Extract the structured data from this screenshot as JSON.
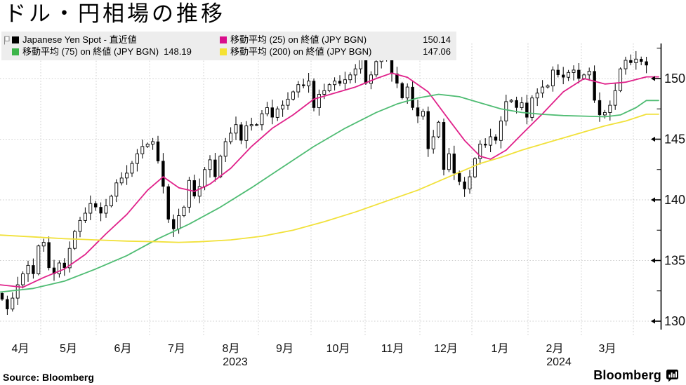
{
  "title": "ドル・円相場の推移",
  "source": "Source:  Bloomberg",
  "branding": {
    "wordmark": "Bloomberg"
  },
  "legend": {
    "series": [
      {
        "label": "Japanese Yen Spot - 直近値",
        "swatch": "#000000",
        "value": ""
      },
      {
        "label": "移動平均 (25)  on 終値 (JPY BGN)",
        "swatch": "#d90e8c",
        "value": "150.14"
      },
      {
        "label": "移動平均 (75)  on 終値 (JPY BGN)",
        "swatch": "#3db54a",
        "value": "148.19"
      },
      {
        "label": "移動平均 (200)  on 終値 (JPY BGN)",
        "swatch": "#f5e233",
        "value": "147.06"
      }
    ]
  },
  "chart_data": {
    "type": "candlestick",
    "instrument": "Japanese Yen Spot (JPY BGN)",
    "x_axis": {
      "months": [
        "4月",
        "5月",
        "6月",
        "7月",
        "8月",
        "9月",
        "10月",
        "11月",
        "12月",
        "1月",
        "2月",
        "3月"
      ],
      "years": [
        {
          "label": "2023",
          "under_month": "8月"
        },
        {
          "label": "2024",
          "under_month": "2月"
        }
      ]
    },
    "y_axis": {
      "ticks": [
        150,
        145,
        140,
        135,
        130
      ],
      "minor_step": 2.5,
      "range_shown": [
        129.3,
        153.0
      ],
      "grid": true
    },
    "candles": {
      "open_first": 132.3,
      "closes": [
        131.8,
        131.0,
        131.9,
        133.0,
        133.9,
        134.6,
        133.9,
        136.2,
        136.5,
        134.4,
        133.9,
        134.8,
        134.4,
        136.0,
        137.4,
        138.3,
        138.9,
        139.7,
        139.4,
        138.9,
        139.5,
        140.3,
        141.4,
        141.8,
        142.2,
        143.0,
        143.8,
        144.4,
        144.6,
        144.8,
        143.2,
        141.1,
        138.4,
        137.6,
        138.7,
        139.4,
        141.6,
        140.3,
        141.1,
        142.5,
        143.3,
        141.9,
        143.6,
        144.8,
        145.5,
        146.2,
        144.9,
        146.1,
        146.2,
        146.2,
        147.1,
        147.6,
        146.8,
        147.5,
        147.8,
        148.3,
        148.9,
        149.5,
        149.4,
        149.8,
        147.6,
        148.7,
        149.0,
        149.5,
        149.8,
        149.6,
        149.9,
        150.3,
        150.8,
        151.6,
        149.6,
        150.3,
        151.4,
        151.7,
        151.8,
        150.4,
        149.6,
        148.4,
        149.3,
        147.6,
        146.9,
        147.3,
        144.2,
        145.2,
        146.4,
        142.5,
        143.8,
        142.2,
        141.5,
        140.9,
        141.9,
        143.4,
        144.6,
        144.5,
        145.2,
        144.9,
        146.5,
        148.1,
        148.2,
        147.6,
        148.0,
        146.8,
        148.4,
        148.8,
        149.3,
        149.4,
        150.7,
        150.3,
        150.1,
        150.5,
        150.7,
        150.0,
        150.3,
        150.6,
        148.2,
        147.0,
        147.2,
        147.8,
        149.0,
        150.8,
        151.5,
        151.3,
        151.6,
        151.4,
        151.1
      ]
    },
    "moving_averages": [
      {
        "name": "移動平均 (25)",
        "color": "#e0218a",
        "last_value": 150.14,
        "points": [
          [
            0,
            133.0
          ],
          [
            4,
            132.8
          ],
          [
            8,
            133.6
          ],
          [
            12,
            134.3
          ],
          [
            16,
            135.5
          ],
          [
            20,
            137.2
          ],
          [
            24,
            138.8
          ],
          [
            28,
            140.8
          ],
          [
            31,
            141.9
          ],
          [
            34,
            141.0
          ],
          [
            37,
            140.7
          ],
          [
            40,
            141.3
          ],
          [
            44,
            142.6
          ],
          [
            48,
            144.4
          ],
          [
            52,
            145.9
          ],
          [
            56,
            147.0
          ],
          [
            60,
            148.3
          ],
          [
            64,
            148.8
          ],
          [
            68,
            149.3
          ],
          [
            72,
            150.0
          ],
          [
            75,
            150.45
          ],
          [
            78,
            150.1
          ],
          [
            82,
            148.9
          ],
          [
            86,
            146.6
          ],
          [
            89,
            144.9
          ],
          [
            92,
            143.6
          ],
          [
            94,
            143.35
          ],
          [
            97,
            144.1
          ],
          [
            100,
            145.4
          ],
          [
            104,
            147.1
          ],
          [
            108,
            148.9
          ],
          [
            112,
            150.0
          ],
          [
            116,
            149.55
          ],
          [
            120,
            149.7
          ],
          [
            124,
            150.14
          ]
        ]
      },
      {
        "name": "移動平均 (75)",
        "color": "#4fbc73",
        "last_value": 148.19,
        "points": [
          [
            0,
            132.4
          ],
          [
            6,
            132.7
          ],
          [
            12,
            133.3
          ],
          [
            18,
            134.3
          ],
          [
            24,
            135.4
          ],
          [
            30,
            136.8
          ],
          [
            36,
            138.0
          ],
          [
            42,
            139.4
          ],
          [
            48,
            141.0
          ],
          [
            54,
            142.7
          ],
          [
            60,
            144.4
          ],
          [
            66,
            145.9
          ],
          [
            72,
            147.2
          ],
          [
            76,
            147.9
          ],
          [
            80,
            148.4
          ],
          [
            84,
            148.7
          ],
          [
            88,
            148.5
          ],
          [
            92,
            148.0
          ],
          [
            96,
            147.5
          ],
          [
            100,
            147.2
          ],
          [
            104,
            147.05
          ],
          [
            108,
            146.95
          ],
          [
            112,
            146.9
          ],
          [
            116,
            146.85
          ],
          [
            119,
            147.0
          ],
          [
            122,
            147.6
          ],
          [
            124,
            148.19
          ]
        ]
      },
      {
        "name": "移動平均 (200)",
        "color": "#f1e13a",
        "last_value": 147.06,
        "points": [
          [
            0,
            137.1
          ],
          [
            6,
            136.95
          ],
          [
            12,
            136.8
          ],
          [
            18,
            136.7
          ],
          [
            24,
            136.6
          ],
          [
            30,
            136.55
          ],
          [
            34,
            136.5
          ],
          [
            38,
            136.55
          ],
          [
            44,
            136.7
          ],
          [
            50,
            137.0
          ],
          [
            56,
            137.5
          ],
          [
            62,
            138.2
          ],
          [
            68,
            139.0
          ],
          [
            74,
            139.9
          ],
          [
            80,
            140.8
          ],
          [
            86,
            141.9
          ],
          [
            92,
            143.0
          ],
          [
            96,
            143.5
          ],
          [
            100,
            144.1
          ],
          [
            104,
            144.6
          ],
          [
            108,
            145.1
          ],
          [
            112,
            145.6
          ],
          [
            116,
            146.1
          ],
          [
            120,
            146.5
          ],
          [
            124,
            147.06
          ]
        ]
      }
    ]
  }
}
